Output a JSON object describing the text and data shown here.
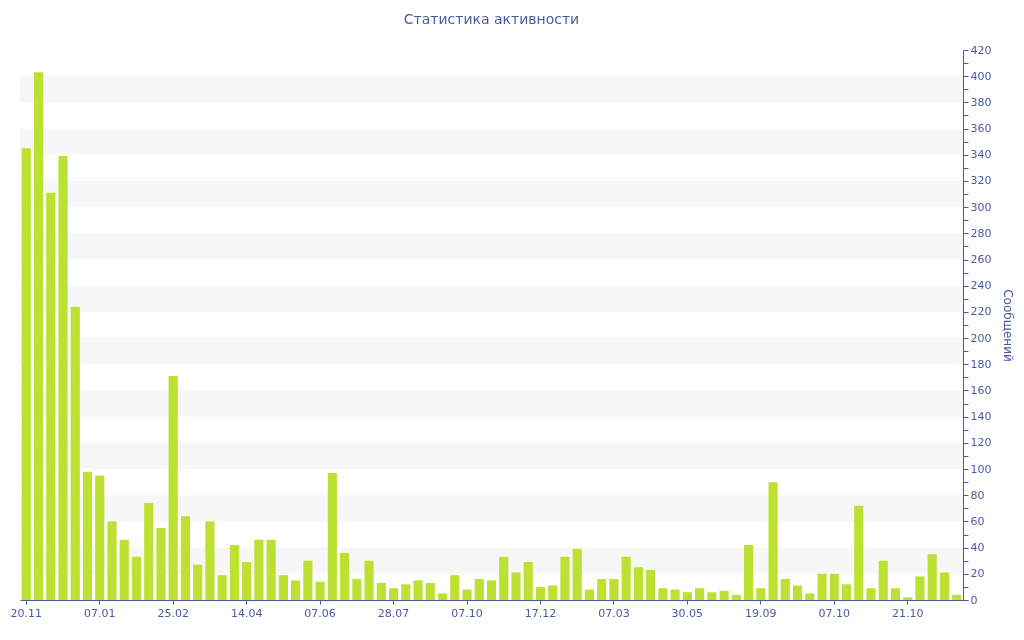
{
  "chart_data": {
    "type": "bar",
    "title": "Статистика активности",
    "ylabel": "Сообщений",
    "color": "#bde033",
    "categories": [
      "20.11",
      null,
      null,
      null,
      null,
      null,
      "07.01",
      null,
      null,
      null,
      null,
      null,
      "25.02",
      null,
      null,
      null,
      null,
      null,
      "14.04",
      null,
      null,
      null,
      null,
      null,
      "07.06",
      null,
      null,
      null,
      null,
      null,
      "28.07",
      null,
      null,
      null,
      null,
      null,
      "07.10",
      null,
      null,
      null,
      null,
      null,
      "17.12",
      null,
      null,
      null,
      null,
      null,
      "07.03",
      null,
      null,
      null,
      null,
      null,
      "30.05",
      null,
      null,
      null,
      null,
      null,
      "19.09",
      null,
      null,
      null,
      null,
      null,
      "07.10",
      null,
      null,
      null,
      null,
      null,
      "21.10",
      null,
      null,
      null,
      null
    ],
    "values": [
      345,
      403,
      311,
      339,
      224,
      98,
      95,
      60,
      46,
      33,
      74,
      55,
      171,
      64,
      27,
      60,
      19,
      42,
      29,
      46,
      46,
      19,
      15,
      30,
      14,
      97,
      36,
      16,
      30,
      13,
      9,
      12,
      15,
      13,
      5,
      19,
      8,
      16,
      15,
      33,
      21,
      29,
      10,
      11,
      33,
      39,
      8,
      16,
      16,
      33,
      25,
      23,
      9,
      8,
      6,
      9,
      6,
      7,
      4,
      42,
      9,
      90,
      16,
      11,
      5,
      20,
      20,
      12,
      72,
      9,
      30,
      9,
      2,
      18,
      35,
      21,
      4
    ],
    "ylim": [
      0,
      420
    ],
    "yticks": [
      0,
      {
        "value": 10,
        "label": null
      },
      20,
      {
        "value": 30,
        "label": null
      },
      40,
      {
        "value": 50,
        "label": null
      },
      60,
      {
        "value": 70,
        "label": null
      },
      80,
      {
        "value": 90,
        "label": null
      },
      100,
      {
        "value": 110,
        "label": null
      },
      120,
      {
        "value": 130,
        "label": null
      },
      140,
      {
        "value": 150,
        "label": null
      },
      160,
      {
        "value": 170,
        "label": null
      },
      180,
      {
        "value": 190,
        "label": null
      },
      200,
      {
        "value": 210,
        "label": null
      },
      220,
      {
        "value": 230,
        "label": null
      },
      240,
      {
        "value": 250,
        "label": null
      },
      260,
      {
        "value": 270,
        "label": null
      },
      280,
      {
        "value": 290,
        "label": null
      },
      300,
      {
        "value": 310,
        "label": null
      },
      320,
      {
        "value": 330,
        "label": null
      },
      340,
      {
        "value": 350,
        "label": null
      },
      360,
      {
        "value": 370,
        "label": null
      },
      380,
      {
        "value": 390,
        "label": null
      },
      400,
      {
        "value": 410,
        "label": null
      },
      420
    ],
    "bands": [
      {
        "axis": "y",
        "from": 20,
        "to": 40,
        "color": "#f7f7f7"
      },
      {
        "axis": "y",
        "from": 60,
        "to": 80,
        "color": "#f7f7f7"
      },
      {
        "axis": "y",
        "from": 100,
        "to": 120,
        "color": "#f7f7f7"
      },
      {
        "axis": "y",
        "from": 140,
        "to": 160,
        "color": "#f7f7f7"
      },
      {
        "axis": "y",
        "from": 180,
        "to": 200,
        "color": "#f7f7f7"
      },
      {
        "axis": "y",
        "from": 220,
        "to": 240,
        "color": "#f7f7f7"
      },
      {
        "axis": "y",
        "from": 260,
        "to": 280,
        "color": "#f7f7f7"
      },
      {
        "axis": "y",
        "from": 300,
        "to": 320,
        "color": "#f7f7f7"
      },
      {
        "axis": "y",
        "from": 340,
        "to": 360,
        "color": "#f7f7f7"
      },
      {
        "axis": "y",
        "from": 380,
        "to": 400,
        "color": "#f7f7f7"
      }
    ]
  }
}
